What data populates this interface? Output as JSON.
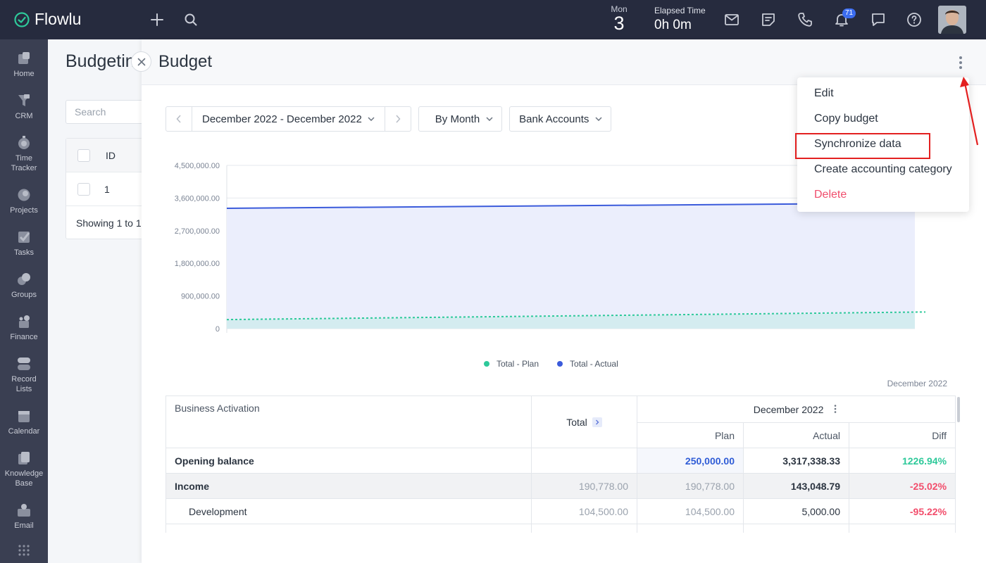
{
  "app": {
    "name": "Flowlu"
  },
  "topbar": {
    "day_name": "Mon",
    "day_number": "3",
    "elapsed_label": "Elapsed Time",
    "elapsed_value": "0h 0m",
    "notification_count": "71"
  },
  "sidebar": {
    "items": [
      {
        "label": "Home"
      },
      {
        "label": "CRM"
      },
      {
        "label": "Time Tracker"
      },
      {
        "label": "Projects"
      },
      {
        "label": "Tasks"
      },
      {
        "label": "Groups"
      },
      {
        "label": "Finance"
      },
      {
        "label": "Record Lists"
      },
      {
        "label": "Calendar"
      },
      {
        "label": "Knowledge Base"
      },
      {
        "label": "Email"
      }
    ]
  },
  "background": {
    "title": "Budgetin",
    "search_placeholder": "Search",
    "id_header": "ID",
    "row_id": "1",
    "footer": "Showing 1 to 1"
  },
  "panel": {
    "title": "Budget",
    "date_range": "December 2022 - December 2022",
    "period": "By Month",
    "accounts": "Bank Accounts"
  },
  "chart_data": {
    "type": "area",
    "x": [
      "December 2022"
    ],
    "y_ticks": [
      "4,500,000.00",
      "3,600,000.00",
      "2,700,000.00",
      "1,800,000.00",
      "900,000.00",
      "0"
    ],
    "ylim": [
      0,
      4500000
    ],
    "x_label": "December 2022",
    "series": [
      {
        "name": "Total - Plan",
        "color": "#2ec99a",
        "start": 250000,
        "end": 440000
      },
      {
        "name": "Total - Actual",
        "color": "#3b5bdb",
        "start": 3317338.33,
        "end": 3460386.54
      }
    ],
    "legend_position": "bottom"
  },
  "table": {
    "activation_header": "Business Activation",
    "total_header": "Total",
    "month_header": "December 2022",
    "sub_headers": [
      "Plan",
      "Actual",
      "Diff"
    ],
    "rows": [
      {
        "name": "Opening balance",
        "total": "",
        "plan": "250,000.00",
        "actual": "3,317,338.33",
        "diff": "1226.94%"
      },
      {
        "name": "Income",
        "total": "190,778.00",
        "plan": "190,778.00",
        "actual": "143,048.79",
        "diff": "-25.02%"
      },
      {
        "name": "Development",
        "total": "104,500.00",
        "plan": "104,500.00",
        "actual": "5,000.00",
        "diff": "-95.22%"
      }
    ]
  },
  "menu": {
    "items": [
      "Edit",
      "Copy budget",
      "Synchronize data",
      "Create accounting category",
      "Delete"
    ]
  }
}
